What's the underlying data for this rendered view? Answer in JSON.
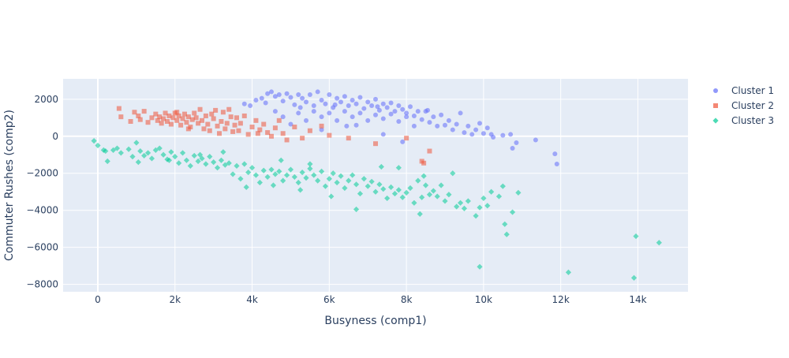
{
  "chart_data": {
    "type": "scatter",
    "title": "",
    "xlabel": "Busyness (comp1)",
    "ylabel": "Commuter Rushes (comp2)",
    "xlim": [
      -900,
      15300
    ],
    "ylim": [
      -8400,
      3100
    ],
    "x_ticks": [
      0,
      2000,
      4000,
      6000,
      8000,
      10000,
      12000,
      14000
    ],
    "x_tick_labels": [
      "0",
      "2k",
      "4k",
      "6k",
      "8k",
      "10k",
      "12k",
      "14k"
    ],
    "y_ticks": [
      -8000,
      -6000,
      -4000,
      -2000,
      0,
      2000
    ],
    "y_tick_labels": [
      "−8000",
      "−6000",
      "−4000",
      "−2000",
      "0",
      "2000"
    ],
    "grid": true,
    "legend_position": "right",
    "series": [
      {
        "name": "Cluster 1",
        "color": "#636efa",
        "marker": "circle",
        "points": [
          [
            3800,
            1750
          ],
          [
            3950,
            1650
          ],
          [
            4100,
            1950
          ],
          [
            4250,
            2050
          ],
          [
            4350,
            1800
          ],
          [
            4400,
            2300
          ],
          [
            4500,
            2400
          ],
          [
            4600,
            2150
          ],
          [
            4700,
            2250
          ],
          [
            4800,
            1900
          ],
          [
            4900,
            2300
          ],
          [
            5000,
            2100
          ],
          [
            5100,
            1700
          ],
          [
            5200,
            2250
          ],
          [
            5300,
            2050
          ],
          [
            5400,
            1850
          ],
          [
            5500,
            2250
          ],
          [
            5600,
            1650
          ],
          [
            5700,
            2400
          ],
          [
            5800,
            1950
          ],
          [
            5900,
            1750
          ],
          [
            6000,
            2250
          ],
          [
            6100,
            1550
          ],
          [
            6200,
            2050
          ],
          [
            6300,
            1850
          ],
          [
            6400,
            2150
          ],
          [
            6500,
            1650
          ],
          [
            6600,
            1950
          ],
          [
            6700,
            1750
          ],
          [
            6800,
            2100
          ],
          [
            6900,
            1500
          ],
          [
            7000,
            1850
          ],
          [
            7100,
            1650
          ],
          [
            7200,
            2000
          ],
          [
            7300,
            1400
          ],
          [
            7400,
            1750
          ],
          [
            7500,
            1550
          ],
          [
            7600,
            1800
          ],
          [
            7700,
            1350
          ],
          [
            7800,
            1650
          ],
          [
            7900,
            1450
          ],
          [
            8000,
            1250
          ],
          [
            8100,
            1600
          ],
          [
            8200,
            1100
          ],
          [
            8300,
            1350
          ],
          [
            8400,
            900
          ],
          [
            8500,
            1350
          ],
          [
            8600,
            750
          ],
          [
            8700,
            1050
          ],
          [
            8800,
            550
          ],
          [
            8900,
            1150
          ],
          [
            9000,
            600
          ],
          [
            9100,
            850
          ],
          [
            9200,
            350
          ],
          [
            9300,
            650
          ],
          [
            9400,
            1250
          ],
          [
            9500,
            200
          ],
          [
            9600,
            550
          ],
          [
            9700,
            100
          ],
          [
            9800,
            350
          ],
          [
            9900,
            700
          ],
          [
            10000,
            150
          ],
          [
            10100,
            450
          ],
          [
            10200,
            100
          ],
          [
            10250,
            -50
          ],
          [
            10500,
            50
          ],
          [
            10700,
            100
          ],
          [
            10750,
            -650
          ],
          [
            10850,
            -350
          ],
          [
            11350,
            -200
          ],
          [
            11850,
            -950
          ],
          [
            11900,
            -1500
          ],
          [
            4600,
            1350
          ],
          [
            4800,
            1050
          ],
          [
            5000,
            650
          ],
          [
            5200,
            1250
          ],
          [
            5400,
            850
          ],
          [
            5600,
            1350
          ],
          [
            5800,
            1050
          ],
          [
            6000,
            1250
          ],
          [
            6200,
            850
          ],
          [
            6400,
            1350
          ],
          [
            6600,
            1050
          ],
          [
            6800,
            1250
          ],
          [
            7000,
            850
          ],
          [
            7200,
            1150
          ],
          [
            7400,
            950
          ],
          [
            7600,
            1200
          ],
          [
            7800,
            800
          ],
          [
            8000,
            1050
          ],
          [
            8200,
            550
          ],
          [
            5800,
            350
          ],
          [
            6700,
            600
          ],
          [
            7400,
            100
          ],
          [
            7900,
            -300
          ],
          [
            6450,
            550
          ],
          [
            5250,
            1550
          ],
          [
            6150,
            1700
          ],
          [
            7250,
            1600
          ],
          [
            8550,
            1400
          ]
        ]
      },
      {
        "name": "Cluster 2",
        "color": "#ef553b",
        "marker": "square",
        "points": [
          [
            550,
            1500
          ],
          [
            600,
            1050
          ],
          [
            850,
            800
          ],
          [
            950,
            1300
          ],
          [
            1050,
            1100
          ],
          [
            1100,
            900
          ],
          [
            1200,
            1350
          ],
          [
            1300,
            750
          ],
          [
            1400,
            1000
          ],
          [
            1500,
            1200
          ],
          [
            1550,
            850
          ],
          [
            1600,
            1050
          ],
          [
            1700,
            950
          ],
          [
            1750,
            1250
          ],
          [
            1800,
            800
          ],
          [
            1850,
            1100
          ],
          [
            1900,
            650
          ],
          [
            1950,
            1000
          ],
          [
            2000,
            1250
          ],
          [
            2050,
            850
          ],
          [
            2100,
            1100
          ],
          [
            2150,
            600
          ],
          [
            2200,
            950
          ],
          [
            2250,
            1200
          ],
          [
            2300,
            750
          ],
          [
            2350,
            1050
          ],
          [
            2400,
            500
          ],
          [
            2450,
            900
          ],
          [
            2500,
            1250
          ],
          [
            2600,
            700
          ],
          [
            2650,
            1450
          ],
          [
            2700,
            850
          ],
          [
            2750,
            400
          ],
          [
            2800,
            1100
          ],
          [
            2850,
            650
          ],
          [
            2900,
            300
          ],
          [
            3000,
            950
          ],
          [
            3050,
            1400
          ],
          [
            3100,
            550
          ],
          [
            3150,
            150
          ],
          [
            3200,
            800
          ],
          [
            3250,
            1300
          ],
          [
            3300,
            400
          ],
          [
            3350,
            700
          ],
          [
            3400,
            1450
          ],
          [
            3500,
            250
          ],
          [
            3550,
            600
          ],
          [
            3600,
            1000
          ],
          [
            3650,
            300
          ],
          [
            3700,
            700
          ],
          [
            3800,
            1100
          ],
          [
            3900,
            100
          ],
          [
            4000,
            500
          ],
          [
            4100,
            850
          ],
          [
            4200,
            350
          ],
          [
            4300,
            650
          ],
          [
            4400,
            200
          ],
          [
            4500,
            0
          ],
          [
            4600,
            450
          ],
          [
            4700,
            850
          ],
          [
            4800,
            150
          ],
          [
            4900,
            -200
          ],
          [
            5100,
            500
          ],
          [
            5300,
            -100
          ],
          [
            5500,
            300
          ],
          [
            5800,
            550
          ],
          [
            6000,
            50
          ],
          [
            6500,
            -100
          ],
          [
            7200,
            -400
          ],
          [
            8000,
            -100
          ],
          [
            8400,
            -1350
          ],
          [
            8450,
            -1450
          ],
          [
            8600,
            -800
          ],
          [
            2050,
            1300
          ],
          [
            2550,
            1000
          ],
          [
            2950,
            1200
          ],
          [
            1650,
            700
          ],
          [
            2350,
            400
          ],
          [
            3450,
            1050
          ],
          [
            4150,
            150
          ]
        ]
      },
      {
        "name": "Cluster 3",
        "color": "#00cc96",
        "marker": "diamond",
        "points": [
          [
            -100,
            -250
          ],
          [
            0,
            -500
          ],
          [
            150,
            -750
          ],
          [
            200,
            -800
          ],
          [
            250,
            -1350
          ],
          [
            400,
            -750
          ],
          [
            500,
            -650
          ],
          [
            600,
            -900
          ],
          [
            800,
            -700
          ],
          [
            900,
            -1100
          ],
          [
            1000,
            -350
          ],
          [
            1100,
            -800
          ],
          [
            1200,
            -1050
          ],
          [
            1300,
            -900
          ],
          [
            1400,
            -1200
          ],
          [
            1500,
            -750
          ],
          [
            1600,
            -650
          ],
          [
            1700,
            -1000
          ],
          [
            1800,
            -1250
          ],
          [
            1900,
            -850
          ],
          [
            2000,
            -1100
          ],
          [
            2100,
            -1450
          ],
          [
            2200,
            -900
          ],
          [
            2300,
            -1300
          ],
          [
            2400,
            -1600
          ],
          [
            2500,
            -1050
          ],
          [
            2600,
            -1350
          ],
          [
            2700,
            -1200
          ],
          [
            2800,
            -1500
          ],
          [
            2900,
            -1100
          ],
          [
            3000,
            -1400
          ],
          [
            3100,
            -1700
          ],
          [
            3200,
            -1300
          ],
          [
            3300,
            -1550
          ],
          [
            3400,
            -1450
          ],
          [
            3500,
            -2050
          ],
          [
            3600,
            -1600
          ],
          [
            3700,
            -2300
          ],
          [
            3800,
            -1500
          ],
          [
            3900,
            -1950
          ],
          [
            4000,
            -1700
          ],
          [
            4100,
            -2100
          ],
          [
            4200,
            -2500
          ],
          [
            4300,
            -1850
          ],
          [
            4400,
            -2200
          ],
          [
            4500,
            -1800
          ],
          [
            4600,
            -2050
          ],
          [
            4700,
            -1900
          ],
          [
            4800,
            -2400
          ],
          [
            4900,
            -2100
          ],
          [
            5000,
            -1800
          ],
          [
            5100,
            -2200
          ],
          [
            5200,
            -2500
          ],
          [
            5300,
            -1950
          ],
          [
            5400,
            -2250
          ],
          [
            5500,
            -1750
          ],
          [
            5600,
            -2100
          ],
          [
            5700,
            -2400
          ],
          [
            5800,
            -1900
          ],
          [
            5900,
            -2700
          ],
          [
            6000,
            -2300
          ],
          [
            6100,
            -2000
          ],
          [
            6200,
            -2500
          ],
          [
            6300,
            -2150
          ],
          [
            6400,
            -2800
          ],
          [
            6500,
            -2400
          ],
          [
            6600,
            -2100
          ],
          [
            6700,
            -2600
          ],
          [
            6800,
            -3100
          ],
          [
            6900,
            -2300
          ],
          [
            7000,
            -2700
          ],
          [
            7100,
            -2450
          ],
          [
            7200,
            -3000
          ],
          [
            7300,
            -2600
          ],
          [
            7400,
            -2850
          ],
          [
            7500,
            -3350
          ],
          [
            7600,
            -2750
          ],
          [
            7700,
            -3100
          ],
          [
            7800,
            -2900
          ],
          [
            7900,
            -3300
          ],
          [
            8000,
            -3050
          ],
          [
            8100,
            -2800
          ],
          [
            8200,
            -3600
          ],
          [
            8300,
            -2400
          ],
          [
            8400,
            -3300
          ],
          [
            8500,
            -2650
          ],
          [
            8600,
            -3150
          ],
          [
            8700,
            -2950
          ],
          [
            8800,
            -3250
          ],
          [
            8900,
            -2650
          ],
          [
            9000,
            -3500
          ],
          [
            9100,
            -3150
          ],
          [
            9200,
            -2000
          ],
          [
            9300,
            -3800
          ],
          [
            9400,
            -3600
          ],
          [
            9500,
            -3900
          ],
          [
            9600,
            -3500
          ],
          [
            9800,
            -4300
          ],
          [
            9900,
            -3850
          ],
          [
            10000,
            -3350
          ],
          [
            10100,
            -3750
          ],
          [
            10200,
            -3000
          ],
          [
            10400,
            -3250
          ],
          [
            10500,
            -2700
          ],
          [
            10550,
            -4750
          ],
          [
            10600,
            -5300
          ],
          [
            10750,
            -4100
          ],
          [
            10900,
            -3050
          ],
          [
            9900,
            -7050
          ],
          [
            12200,
            -7350
          ],
          [
            13900,
            -7650
          ],
          [
            13950,
            -5400
          ],
          [
            14550,
            -5750
          ],
          [
            6700,
            -3950
          ],
          [
            7800,
            -1700
          ],
          [
            8450,
            -2150
          ],
          [
            8350,
            -4200
          ],
          [
            5500,
            -1500
          ],
          [
            4750,
            -1300
          ],
          [
            3250,
            -850
          ],
          [
            2650,
            -1000
          ],
          [
            1850,
            -1300
          ],
          [
            1050,
            -1400
          ],
          [
            3850,
            -2750
          ],
          [
            5250,
            -2900
          ],
          [
            4550,
            -2650
          ],
          [
            6050,
            -3250
          ],
          [
            7350,
            -1650
          ]
        ]
      }
    ]
  }
}
